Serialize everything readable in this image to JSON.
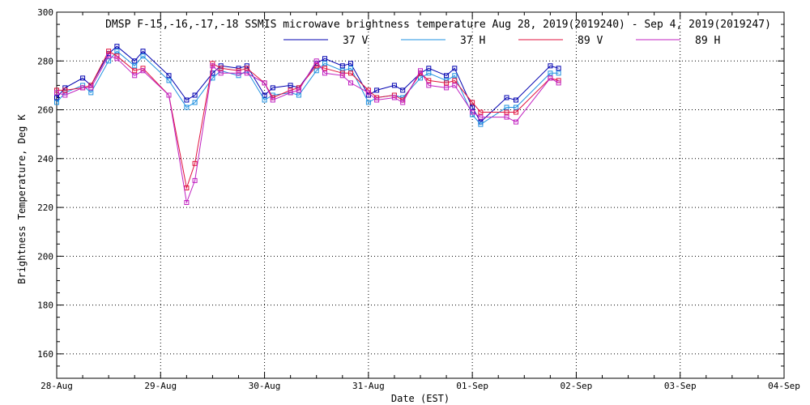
{
  "chart_data": {
    "type": "line",
    "title": "DMSP F-15,-16,-17,-18 SSMIS microwave brightness temperature Aug 28, 2019(2019240) - Sep  4, 2019(2019247)",
    "xlabel": "Date (EST)",
    "ylabel": "Brightness Temperature, Deg K",
    "xlim": [
      0,
      7
    ],
    "ylim": [
      150,
      300
    ],
    "y_ticks": [
      160,
      180,
      200,
      220,
      240,
      260,
      280,
      300
    ],
    "x_tick_labels": [
      "28-Aug",
      "29-Aug",
      "30-Aug",
      "31-Aug",
      "01-Sep",
      "02-Sep",
      "03-Sep",
      "04-Sep"
    ],
    "grid": true,
    "legend_placement": "top-center",
    "x_unit_note": "x values are days after 28-Aug 00:00",
    "series": [
      {
        "name": "37 V",
        "color": "#0000b0",
        "x": [
          0.0,
          0.08,
          0.25,
          0.33,
          0.5,
          0.58,
          0.75,
          0.83,
          1.08,
          1.25,
          1.33,
          1.5,
          1.58,
          1.75,
          1.83,
          2.0,
          2.08,
          2.25,
          2.33,
          2.5,
          2.58,
          2.75,
          2.83,
          3.0,
          3.08,
          3.25,
          3.33,
          3.5,
          3.58,
          3.75,
          3.83,
          4.0,
          4.08,
          4.33,
          4.42,
          4.75,
          4.83
        ],
        "y": [
          265,
          269,
          273,
          270,
          283,
          286,
          280,
          284,
          274,
          264,
          266,
          275,
          278,
          277,
          278,
          266,
          269,
          270,
          269,
          279,
          281,
          278,
          279,
          266,
          268,
          270,
          268,
          275,
          277,
          274,
          277,
          261,
          255,
          265,
          264,
          278,
          277
        ]
      },
      {
        "name": "37 H",
        "color": "#1e90e0",
        "x": [
          0.0,
          0.08,
          0.25,
          0.33,
          0.5,
          0.58,
          0.75,
          0.83,
          1.08,
          1.25,
          1.33,
          1.5,
          1.58,
          1.75,
          1.83,
          2.0,
          2.08,
          2.25,
          2.33,
          2.5,
          2.58,
          2.75,
          2.83,
          3.0,
          3.08,
          3.25,
          3.33,
          3.5,
          3.58,
          3.75,
          3.83,
          4.0,
          4.08,
          4.33,
          4.42,
          4.75,
          4.83
        ],
        "y": [
          263,
          267,
          270,
          267,
          280,
          284,
          278,
          282,
          272,
          261,
          263,
          273,
          276,
          274,
          276,
          264,
          266,
          267,
          266,
          276,
          279,
          276,
          277,
          263,
          265,
          266,
          265,
          273,
          275,
          272,
          274,
          258,
          254,
          261,
          261,
          275,
          275
        ]
      },
      {
        "name": "89 V",
        "color": "#e0103c",
        "x": [
          0.0,
          0.08,
          0.25,
          0.33,
          0.5,
          0.58,
          0.75,
          0.83,
          1.08,
          1.25,
          1.33,
          1.5,
          1.58,
          1.75,
          1.83,
          2.0,
          2.08,
          2.25,
          2.33,
          2.5,
          2.58,
          2.75,
          2.83,
          3.0,
          3.08,
          3.25,
          3.33,
          3.5,
          3.58,
          3.75,
          3.83,
          4.0,
          4.08,
          4.33,
          4.42,
          4.75,
          4.83
        ],
        "y": [
          268,
          268,
          269,
          270,
          284,
          282,
          276,
          277,
          266,
          228,
          238,
          279,
          277,
          276,
          277,
          271,
          265,
          268,
          269,
          278,
          277,
          275,
          275,
          268,
          265,
          266,
          264,
          275,
          272,
          271,
          272,
          263,
          259,
          259,
          259,
          273,
          272
        ]
      },
      {
        "name": "89 H",
        "color": "#c020c0",
        "x": [
          0.0,
          0.08,
          0.25,
          0.33,
          0.5,
          0.58,
          0.75,
          0.83,
          1.08,
          1.25,
          1.33,
          1.5,
          1.58,
          1.75,
          1.83,
          2.0,
          2.08,
          2.25,
          2.33,
          2.5,
          2.58,
          2.75,
          2.83,
          3.0,
          3.08,
          3.25,
          3.33,
          3.5,
          3.58,
          3.75,
          3.83,
          4.0,
          4.08,
          4.33,
          4.42,
          4.75,
          4.83
        ],
        "y": [
          267,
          266,
          269,
          269,
          282,
          281,
          274,
          276,
          266,
          222,
          231,
          278,
          275,
          275,
          275,
          271,
          264,
          267,
          268,
          280,
          275,
          274,
          271,
          267,
          264,
          265,
          263,
          276,
          270,
          269,
          270,
          259,
          257,
          257,
          255,
          273,
          271
        ]
      }
    ]
  }
}
